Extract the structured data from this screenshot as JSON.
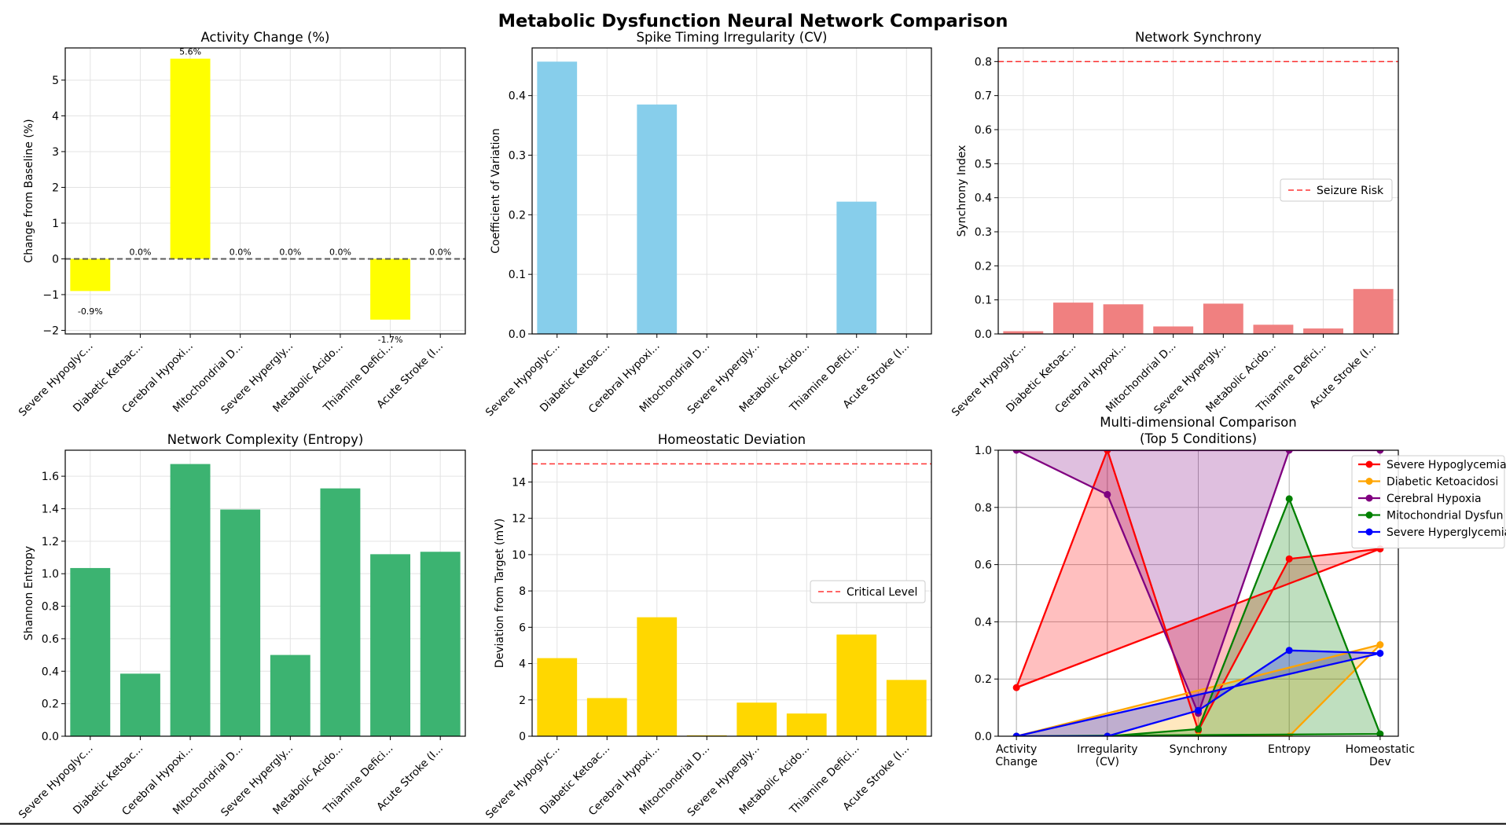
{
  "figure_title": "Metabolic Dysfunction Neural Network Comparison",
  "chart_data": [
    {
      "id": "activity",
      "type": "bar",
      "title": "Activity Change (%)",
      "xlabel": "",
      "ylabel": "Change from Baseline (%)",
      "categories": [
        "Severe Hypoglyc...",
        "Diabetic Ketoac...",
        "Cerebral Hypoxi...",
        "Mitochondrial D...",
        "Severe Hypergly...",
        "Metabolic Acido...",
        "Thiamine Defici...",
        "Acute Stroke (I..."
      ],
      "values": [
        -0.9,
        0.0,
        5.6,
        0.0,
        0.0,
        0.0,
        -1.7,
        0.0
      ],
      "data_labels": [
        "-0.9%",
        "0.0%",
        "5.6%",
        "0.0%",
        "0.0%",
        "0.0%",
        "-1.7%",
        "0.0%"
      ],
      "ylim": [
        -2.1,
        5.9
      ],
      "yticks": [
        -2,
        -1,
        0,
        1,
        2,
        3,
        4,
        5
      ],
      "ytick_labels": [
        "−2",
        "−1",
        "0",
        "1",
        "2",
        "3",
        "4",
        "5"
      ],
      "reference_line": {
        "value": 0,
        "style": "dashed",
        "color": "#444444"
      },
      "bar_color": "#ffff00",
      "grid": true
    },
    {
      "id": "cv",
      "type": "bar",
      "title": "Spike Timing Irregularity (CV)",
      "xlabel": "",
      "ylabel": "Coefficient of Variation",
      "categories": [
        "Severe Hypoglyc...",
        "Diabetic Ketoac...",
        "Cerebral Hypoxi...",
        "Mitochondrial D...",
        "Severe Hypergly...",
        "Metabolic Acido...",
        "Thiamine Defici...",
        "Acute Stroke (I..."
      ],
      "values": [
        0.457,
        0.0,
        0.385,
        0.0,
        0.0,
        0.0,
        0.222,
        0.0
      ],
      "ylim": [
        0,
        0.48
      ],
      "yticks": [
        0.0,
        0.1,
        0.2,
        0.3,
        0.4
      ],
      "ytick_labels": [
        "0.0",
        "0.1",
        "0.2",
        "0.3",
        "0.4"
      ],
      "bar_color": "#87ceeb",
      "grid": true
    },
    {
      "id": "synchrony",
      "type": "bar",
      "title": "Network Synchrony",
      "xlabel": "",
      "ylabel": "Synchrony Index",
      "categories": [
        "Severe Hypoglyc...",
        "Diabetic Ketoac...",
        "Cerebral Hypoxi...",
        "Mitochondrial D...",
        "Severe Hypergly...",
        "Metabolic Acido...",
        "Thiamine Defici...",
        "Acute Stroke (I..."
      ],
      "values": [
        0.008,
        0.092,
        0.087,
        0.022,
        0.089,
        0.027,
        0.016,
        0.132
      ],
      "ylim": [
        0,
        0.84
      ],
      "yticks": [
        0.0,
        0.1,
        0.2,
        0.3,
        0.4,
        0.5,
        0.6,
        0.7,
        0.8
      ],
      "ytick_labels": [
        "0.0",
        "0.1",
        "0.2",
        "0.3",
        "0.4",
        "0.5",
        "0.6",
        "0.7",
        "0.8"
      ],
      "reference_line": {
        "value": 0.8,
        "style": "dashed",
        "color": "#ff0000",
        "label": "Seizure Risk"
      },
      "legend": "center-right",
      "bar_color": "#f08080",
      "grid": true
    },
    {
      "id": "entropy",
      "type": "bar",
      "title": "Network Complexity (Entropy)",
      "xlabel": "",
      "ylabel": "Shannon Entropy",
      "categories": [
        "Severe Hypoglyc...",
        "Diabetic Ketoac...",
        "Cerebral Hypoxi...",
        "Mitochondrial D...",
        "Severe Hypergly...",
        "Metabolic Acido...",
        "Thiamine Defici...",
        "Acute Stroke (I..."
      ],
      "values": [
        1.035,
        0.385,
        1.675,
        1.395,
        0.5,
        1.525,
        1.12,
        1.135
      ],
      "ylim": [
        0,
        1.76
      ],
      "yticks": [
        0.0,
        0.2,
        0.4,
        0.6,
        0.8,
        1.0,
        1.2,
        1.4,
        1.6
      ],
      "ytick_labels": [
        "0.0",
        "0.2",
        "0.4",
        "0.6",
        "0.8",
        "1.0",
        "1.2",
        "1.4",
        "1.6"
      ],
      "bar_color": "#3cb371",
      "grid": true
    },
    {
      "id": "homeostatic",
      "type": "bar",
      "title": "Homeostatic Deviation",
      "xlabel": "",
      "ylabel": "Deviation from Target (mV)",
      "categories": [
        "Severe Hypoglyc...",
        "Diabetic Ketoac...",
        "Cerebral Hypoxi...",
        "Mitochondrial D...",
        "Severe Hypergly...",
        "Metabolic Acido...",
        "Thiamine Defici...",
        "Acute Stroke (I..."
      ],
      "values": [
        4.3,
        2.1,
        6.55,
        0.05,
        1.85,
        1.25,
        5.6,
        3.1
      ],
      "ylim": [
        0,
        15.75
      ],
      "yticks": [
        0,
        2,
        4,
        6,
        8,
        10,
        12,
        14
      ],
      "ytick_labels": [
        "0",
        "2",
        "4",
        "6",
        "8",
        "10",
        "12",
        "14"
      ],
      "reference_line": {
        "value": 15,
        "style": "dashed",
        "color": "#ff0000",
        "label": "Critical Level"
      },
      "legend": "center-right",
      "bar_color": "#ffd700",
      "grid": true
    },
    {
      "id": "multi",
      "type": "line",
      "title": "Multi-dimensional Comparison\n(Top 5 Conditions)",
      "xlabel": "",
      "ylabel": "",
      "categories": [
        "Activity\nChange",
        "Irregularity\n(CV)",
        "Synchrony",
        "Entropy",
        "Homeostatic\nDev"
      ],
      "ylim": [
        0,
        1.0
      ],
      "yticks": [
        0.0,
        0.2,
        0.4,
        0.6,
        0.8,
        1.0
      ],
      "ytick_labels": [
        "0.0",
        "0.2",
        "0.4",
        "0.6",
        "0.8",
        "1.0"
      ],
      "legend": "upper-right",
      "grid": true,
      "filled": true,
      "closed": true,
      "series": [
        {
          "name": "Severe Hypoglycemia",
          "color": "#ff0000",
          "values": [
            0.17,
            1.0,
            0.02,
            0.62,
            0.655
          ]
        },
        {
          "name": "Diabetic Ketoacidosi",
          "color": "#ffa500",
          "values": [
            0.0,
            0.0,
            0.0,
            0.0,
            0.32
          ]
        },
        {
          "name": "Cerebral Hypoxia",
          "color": "#800080",
          "values": [
            1.0,
            0.845,
            0.08,
            1.0,
            1.0
          ]
        },
        {
          "name": "Mitochondrial Dysfun",
          "color": "#008000",
          "values": [
            0.0,
            0.0,
            0.025,
            0.83,
            0.008
          ]
        },
        {
          "name": "Severe Hyperglycemia",
          "color": "#0000ff",
          "values": [
            0.0,
            0.0,
            0.09,
            0.3,
            0.29
          ]
        }
      ]
    }
  ]
}
